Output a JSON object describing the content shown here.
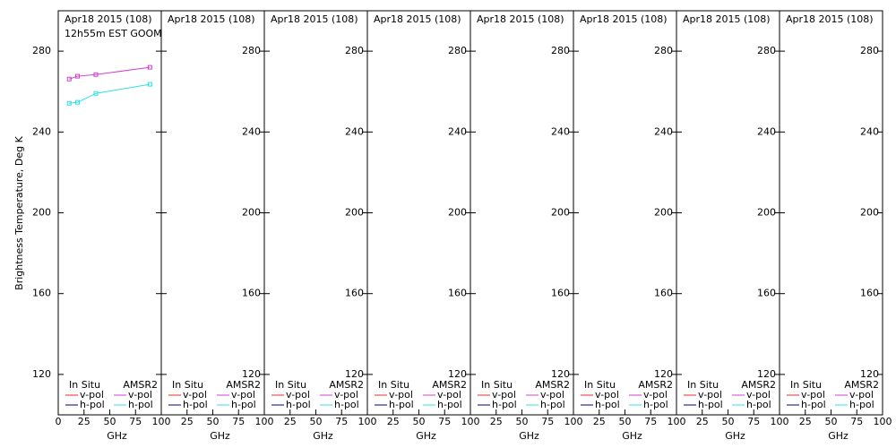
{
  "chart_data": [
    {
      "type": "line",
      "title": "Apr18 2015 (108)",
      "subtitle": "12h55m EST GOOM",
      "ylabel": "Brightness Temperature, Deg K",
      "xlabel": "GHz",
      "xlim": [
        0,
        100
      ],
      "ylim": [
        100,
        300
      ],
      "xticks": [
        0,
        25,
        50,
        75,
        100
      ],
      "yticks": [
        120,
        160,
        200,
        240,
        280
      ],
      "x": [
        10.65,
        18.7,
        36.5,
        89
      ],
      "series_groups": [
        {
          "name": "In Situ",
          "series": [
            {
              "name": "v-pol",
              "color": "#e03030",
              "values": [
                null,
                null,
                null,
                null
              ]
            },
            {
              "name": "h-pol",
              "color": "#000080",
              "values": [
                null,
                null,
                null,
                null
              ]
            }
          ]
        },
        {
          "name": "AMSR2",
          "series": [
            {
              "name": "v-pol",
              "color": "#d040d0",
              "values": [
                266.2,
                267.6,
                268.4,
                272
              ]
            },
            {
              "name": "h-pol",
              "color": "#30e0e0",
              "values": [
                254.2,
                254.7,
                259.1,
                263.6
              ]
            }
          ]
        }
      ]
    },
    {
      "type": "line",
      "title": "Apr18 2015 (108)",
      "xlabel": "GHz",
      "xlim": [
        0,
        100
      ],
      "ylim": [
        100,
        300
      ],
      "xticks": [
        25,
        50,
        75,
        100
      ],
      "yticks": [
        120,
        160,
        200,
        240,
        280
      ],
      "x": [],
      "series_groups": [
        {
          "name": "In Situ",
          "series": [
            {
              "name": "v-pol",
              "color": "#e03030",
              "values": []
            },
            {
              "name": "h-pol",
              "color": "#000080",
              "values": []
            }
          ]
        },
        {
          "name": "AMSR2",
          "series": [
            {
              "name": "v-pol",
              "color": "#d040d0",
              "values": []
            },
            {
              "name": "h-pol",
              "color": "#30e0e0",
              "values": []
            }
          ]
        }
      ]
    },
    {
      "type": "line",
      "title": "Apr18 2015 (108)",
      "xlabel": "GHz",
      "xlim": [
        0,
        100
      ],
      "ylim": [
        100,
        300
      ],
      "xticks": [
        25,
        50,
        75,
        100
      ],
      "yticks": [
        120,
        160,
        200,
        240,
        280
      ],
      "x": [],
      "series_groups": [
        {
          "name": "In Situ",
          "series": [
            {
              "name": "v-pol",
              "color": "#e03030",
              "values": []
            },
            {
              "name": "h-pol",
              "color": "#000080",
              "values": []
            }
          ]
        },
        {
          "name": "AMSR2",
          "series": [
            {
              "name": "v-pol",
              "color": "#d040d0",
              "values": []
            },
            {
              "name": "h-pol",
              "color": "#30e0e0",
              "values": []
            }
          ]
        }
      ]
    },
    {
      "type": "line",
      "title": "Apr18 2015 (108)",
      "xlabel": "GHz",
      "xlim": [
        0,
        100
      ],
      "ylim": [
        100,
        300
      ],
      "xticks": [
        25,
        50,
        75,
        100
      ],
      "yticks": [
        120,
        160,
        200,
        240,
        280
      ],
      "x": [],
      "series_groups": [
        {
          "name": "In Situ",
          "series": [
            {
              "name": "v-pol",
              "color": "#e03030",
              "values": []
            },
            {
              "name": "h-pol",
              "color": "#000080",
              "values": []
            }
          ]
        },
        {
          "name": "AMSR2",
          "series": [
            {
              "name": "v-pol",
              "color": "#d040d0",
              "values": []
            },
            {
              "name": "h-pol",
              "color": "#30e0e0",
              "values": []
            }
          ]
        }
      ]
    },
    {
      "type": "line",
      "title": "Apr18 2015 (108)",
      "xlabel": "GHz",
      "xlim": [
        0,
        100
      ],
      "ylim": [
        100,
        300
      ],
      "xticks": [
        25,
        50,
        75,
        100
      ],
      "yticks": [
        120,
        160,
        200,
        240,
        280
      ],
      "x": [],
      "series_groups": [
        {
          "name": "In Situ",
          "series": [
            {
              "name": "v-pol",
              "color": "#e03030",
              "values": []
            },
            {
              "name": "h-pol",
              "color": "#000080",
              "values": []
            }
          ]
        },
        {
          "name": "AMSR2",
          "series": [
            {
              "name": "v-pol",
              "color": "#d040d0",
              "values": []
            },
            {
              "name": "h-pol",
              "color": "#30e0e0",
              "values": []
            }
          ]
        }
      ]
    },
    {
      "type": "line",
      "title": "Apr18 2015 (108)",
      "xlabel": "GHz",
      "xlim": [
        0,
        100
      ],
      "ylim": [
        100,
        300
      ],
      "xticks": [
        25,
        50,
        75,
        100
      ],
      "yticks": [
        120,
        160,
        200,
        240,
        280
      ],
      "x": [],
      "series_groups": [
        {
          "name": "In Situ",
          "series": [
            {
              "name": "v-pol",
              "color": "#e03030",
              "values": []
            },
            {
              "name": "h-pol",
              "color": "#000080",
              "values": []
            }
          ]
        },
        {
          "name": "AMSR2",
          "series": [
            {
              "name": "v-pol",
              "color": "#d040d0",
              "values": []
            },
            {
              "name": "h-pol",
              "color": "#30e0e0",
              "values": []
            }
          ]
        }
      ]
    },
    {
      "type": "line",
      "title": "Apr18 2015 (108)",
      "xlabel": "GHz",
      "xlim": [
        0,
        100
      ],
      "ylim": [
        100,
        300
      ],
      "xticks": [
        25,
        50,
        75,
        100
      ],
      "yticks": [
        120,
        160,
        200,
        240,
        280
      ],
      "x": [],
      "series_groups": [
        {
          "name": "In Situ",
          "series": [
            {
              "name": "v-pol",
              "color": "#e03030",
              "values": []
            },
            {
              "name": "h-pol",
              "color": "#000080",
              "values": []
            }
          ]
        },
        {
          "name": "AMSR2",
          "series": [
            {
              "name": "v-pol",
              "color": "#d040d0",
              "values": []
            },
            {
              "name": "h-pol",
              "color": "#30e0e0",
              "values": []
            }
          ]
        }
      ]
    },
    {
      "type": "line",
      "title": "Apr18 2015 (108)",
      "xlabel": "GHz",
      "xlim": [
        0,
        100
      ],
      "ylim": [
        100,
        300
      ],
      "xticks": [
        25,
        50,
        75,
        100
      ],
      "yticks": [
        120,
        160,
        200,
        240,
        280
      ],
      "x": [],
      "series_groups": [
        {
          "name": "In Situ",
          "series": [
            {
              "name": "v-pol",
              "color": "#e03030",
              "values": []
            },
            {
              "name": "h-pol",
              "color": "#000080",
              "values": []
            }
          ]
        },
        {
          "name": "AMSR2",
          "series": [
            {
              "name": "v-pol",
              "color": "#d040d0",
              "values": []
            },
            {
              "name": "h-pol",
              "color": "#30e0e0",
              "values": []
            }
          ]
        }
      ]
    }
  ]
}
